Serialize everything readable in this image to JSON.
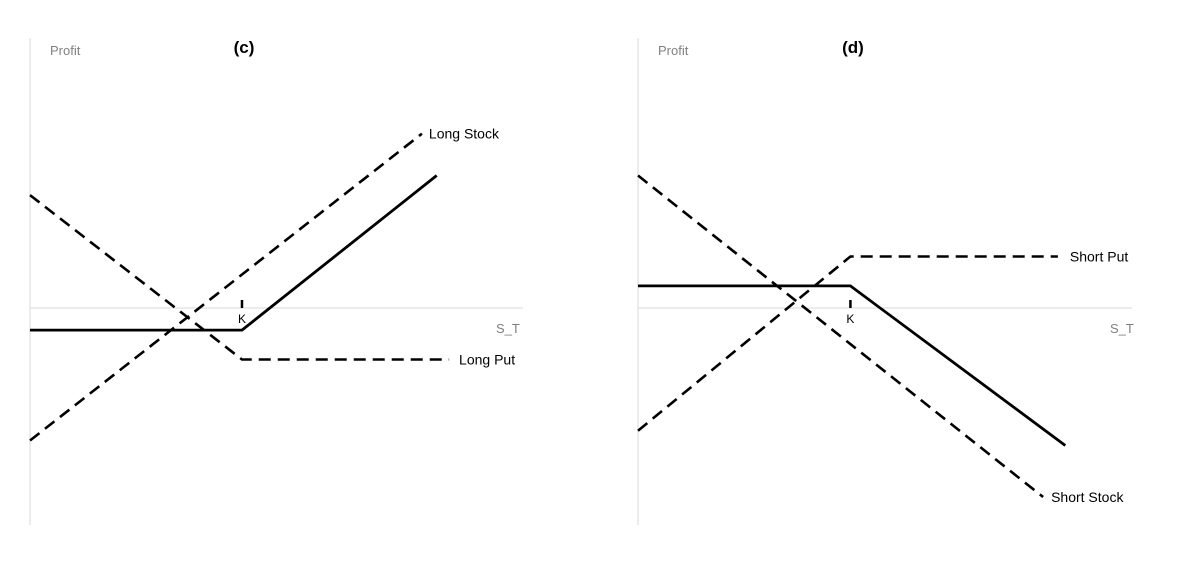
{
  "chart_data": [
    {
      "type": "line",
      "title": "(c)",
      "ylabel": "Profit",
      "xlabel": "S_T",
      "strike_label": "K",
      "xlim": [
        0,
        20
      ],
      "ylim": [
        -9,
        11
      ],
      "strike": 8.6,
      "series": [
        {
          "name": "Long Stock",
          "style": "dashed",
          "x": [
            0,
            15.9
          ],
          "y": [
            -5.4,
            7.1
          ]
        },
        {
          "name": "Long Put",
          "style": "dashed",
          "x": [
            0,
            8.6,
            17.0
          ],
          "y": [
            4.6,
            -2.1,
            -2.1
          ]
        },
        {
          "name": "",
          "style": "solid",
          "x": [
            0,
            8.6,
            16.5
          ],
          "y": [
            -0.9,
            -0.9,
            5.4
          ]
        }
      ]
    },
    {
      "type": "line",
      "title": "(d)",
      "ylabel": "Profit",
      "xlabel": "S_T",
      "strike_label": "K",
      "xlim": [
        0,
        20
      ],
      "ylim": [
        -9,
        11
      ],
      "strike": 8.6,
      "series": [
        {
          "name": "Short Put",
          "style": "dashed",
          "x": [
            0,
            8.6,
            17.0
          ],
          "y": [
            -5.0,
            2.1,
            2.1
          ]
        },
        {
          "name": "Short Stock",
          "style": "dashed",
          "x": [
            0,
            16.4
          ],
          "y": [
            5.4,
            -7.7
          ]
        },
        {
          "name": "",
          "style": "solid",
          "x": [
            0,
            8.6,
            17.3
          ],
          "y": [
            0.9,
            0.9,
            -5.6
          ]
        }
      ]
    }
  ]
}
